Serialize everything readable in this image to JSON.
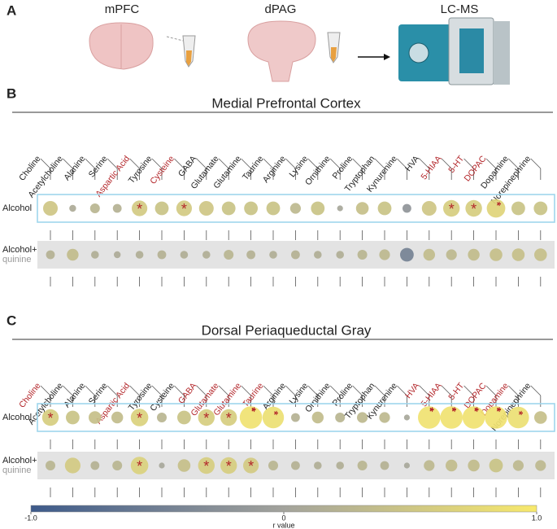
{
  "panel_a": {
    "letter": "A",
    "labels": [
      "mPFC",
      "dPAG",
      "LC-MS"
    ]
  },
  "panels": [
    {
      "letter": "B",
      "title": "Medial Prefrontal Cortex",
      "metabolites": [
        "Choline",
        "Acetylcholine",
        "Alanine",
        "Serine",
        "Aspartic Acid",
        "Tyrosine",
        "Cysteine",
        "GABA",
        "Glutamate",
        "Glutamine",
        "Taurine",
        "Arginine",
        "Lysine",
        "Ornithine",
        "Proline",
        "Tryptophan",
        "Kynurenine",
        "HVA",
        "5-HIAA",
        "5-HT",
        "DOPAC",
        "Dopamine",
        "Norepinephrine"
      ],
      "highlighted": [
        false,
        false,
        false,
        false,
        true,
        false,
        true,
        false,
        false,
        false,
        false,
        false,
        false,
        false,
        false,
        false,
        false,
        false,
        true,
        true,
        true,
        false,
        false
      ],
      "rows": [
        {
          "label": [
            "Alcohol"
          ],
          "boxed": true,
          "values": [
            0.5,
            0.1,
            0.25,
            0.2,
            0.55,
            0.45,
            0.55,
            0.5,
            0.45,
            0.45,
            0.45,
            0.3,
            0.45,
            0.05,
            0.4,
            0.45,
            -0.2,
            0.5,
            0.6,
            0.6,
            0.7,
            0.45,
            0.45
          ],
          "stars": [
            null,
            null,
            null,
            null,
            "*",
            null,
            "*",
            null,
            null,
            null,
            null,
            null,
            null,
            null,
            null,
            null,
            null,
            null,
            "*",
            "*",
            "**",
            null,
            null
          ]
        },
        {
          "label": [
            "Alcohol+",
            "quinine"
          ],
          "boxed": false,
          "values": [
            0.2,
            0.35,
            0.15,
            0.1,
            0.15,
            0.2,
            0.15,
            0.15,
            0.25,
            0.2,
            0.15,
            0.2,
            0.15,
            0.15,
            0.25,
            0.3,
            -0.45,
            0.35,
            0.3,
            0.35,
            0.4,
            0.4,
            0.4
          ],
          "stars": [
            null,
            null,
            null,
            null,
            null,
            null,
            null,
            null,
            null,
            null,
            null,
            null,
            null,
            null,
            null,
            null,
            null,
            null,
            null,
            null,
            null,
            null,
            null
          ]
        }
      ]
    },
    {
      "letter": "C",
      "title": "Dorsal Periaqueductal Gray",
      "metabolites": [
        "Choline",
        "Acetylcholine",
        "Alanine",
        "Serine",
        "Aspartic Acid",
        "Tyrosine",
        "Cysteine",
        "GABA",
        "Glutamate",
        "Glutamine",
        "Taurine",
        "Arginine",
        "Lysine",
        "Ornithine",
        "Proline",
        "Tryptophan",
        "Kynurenine",
        "HVA",
        "5-HIAA",
        "5-HT",
        "DOPAC",
        "Dopamine",
        "Norepinephrine"
      ],
      "highlighted": [
        true,
        false,
        false,
        false,
        true,
        false,
        false,
        true,
        true,
        true,
        true,
        false,
        false,
        false,
        false,
        false,
        false,
        true,
        true,
        true,
        true,
        true,
        false
      ],
      "rows": [
        {
          "label": [
            "Alcohol"
          ],
          "boxed": true,
          "values": [
            0.6,
            0.45,
            0.4,
            0.35,
            0.65,
            0.25,
            0.45,
            0.6,
            0.6,
            0.9,
            0.85,
            0.2,
            0.35,
            0.25,
            0.3,
            0.3,
            0.05,
            0.9,
            0.9,
            0.9,
            0.9,
            0.85,
            0.4
          ],
          "stars": [
            "*",
            null,
            null,
            null,
            "*",
            null,
            null,
            "*",
            "*",
            "***",
            "**",
            null,
            null,
            null,
            null,
            null,
            null,
            "***",
            "***",
            "***",
            "***",
            "**",
            null
          ]
        },
        {
          "label": [
            "Alcohol+",
            "quinine"
          ],
          "boxed": false,
          "values": [
            0.25,
            0.55,
            0.2,
            0.25,
            0.65,
            0.05,
            0.4,
            0.6,
            0.6,
            0.55,
            0.25,
            0.2,
            0.15,
            0.15,
            0.25,
            0.2,
            0.05,
            0.3,
            0.35,
            0.35,
            0.45,
            0.3,
            0.3
          ],
          "stars": [
            null,
            null,
            null,
            null,
            "*",
            null,
            null,
            "*",
            "*",
            "*",
            null,
            null,
            null,
            null,
            null,
            null,
            null,
            null,
            null,
            null,
            null,
            null,
            null
          ]
        }
      ]
    }
  ],
  "colorbar": {
    "lim": [
      -1,
      1
    ],
    "ticks": [
      {
        "value": -1,
        "label": "-1.0"
      },
      0,
      {
        "value": 1,
        "label": "1.0"
      }
    ],
    "label": "r value",
    "colors": [
      "#3d5a8a",
      "#a3a39c",
      "#f8e96c"
    ]
  }
}
